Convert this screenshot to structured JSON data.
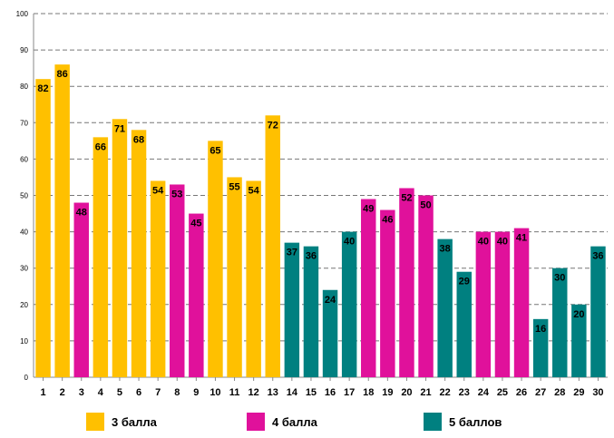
{
  "chart_data": {
    "type": "bar",
    "title": "",
    "xlabel": "",
    "ylabel": "",
    "ylim": [
      0,
      100
    ],
    "yticks": [
      0,
      10,
      20,
      30,
      40,
      50,
      60,
      70,
      80,
      90,
      100
    ],
    "grid": true,
    "categories": [
      "1",
      "2",
      "3",
      "4",
      "5",
      "6",
      "7",
      "8",
      "9",
      "10",
      "11",
      "12",
      "13",
      "14",
      "15",
      "16",
      "17",
      "18",
      "19",
      "20",
      "21",
      "22",
      "23",
      "24",
      "25",
      "26",
      "27",
      "28",
      "29",
      "30"
    ],
    "values": [
      82,
      86,
      48,
      66,
      71,
      68,
      54,
      53,
      45,
      65,
      55,
      54,
      72,
      37,
      36,
      24,
      40,
      49,
      46,
      52,
      50,
      38,
      29,
      40,
      40,
      41,
      16,
      30,
      20,
      36
    ],
    "groups": [
      "g3",
      "g3",
      "g4",
      "g3",
      "g3",
      "g3",
      "g3",
      "g4",
      "g4",
      "g3",
      "g3",
      "g3",
      "g3",
      "g5",
      "g5",
      "g5",
      "g5",
      "g4",
      "g4",
      "g4",
      "g4",
      "g5",
      "g5",
      "g4",
      "g4",
      "g4",
      "g5",
      "g5",
      "g5",
      "g5"
    ],
    "legend": [
      {
        "key": "g3",
        "label": "3 балла",
        "color": "#FFC000"
      },
      {
        "key": "g4",
        "label": "4 балла",
        "color": "#E0119B"
      },
      {
        "key": "g5",
        "label": "5 баллов",
        "color": "#008080"
      }
    ]
  }
}
